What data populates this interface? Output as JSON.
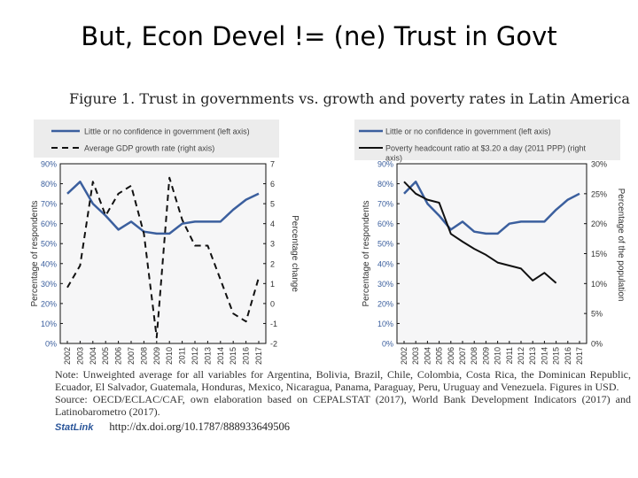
{
  "slide_title": "But, Econ Devel != (ne) Trust in Govt",
  "figure_label": "Figure 1.",
  "figure_title": "Trust in governments vs. growth and poverty rates in Latin America",
  "note": "Note: Unweighted average for all variables for Argentina, Bolivia, Brazil, Chile, Colombia, Costa Rica, the Dominican Republic, Ecuador, El Salvador, Guatemala, Honduras, Mexico, Nicaragua, Panama, Paraguay, Peru, Uruguay and Venezuela. Figures in USD.",
  "source": "Source: OECD/ECLAC/CAF, own elaboration based on CEPALSTAT (2017), World Bank Development Indicators (2017) and Latinobarometro (2017).",
  "statlink_label": "StatLink",
  "statlink_url": "http://dx.doi.org/10.1787/888933649506",
  "colors": {
    "trust": "#3b5f9e",
    "gdp": "#111111",
    "poverty": "#111111",
    "legend_bg": "#ececec"
  },
  "chart_data": [
    {
      "type": "line",
      "x": [
        "2002",
        "2003",
        "2004",
        "2005",
        "2006",
        "2007",
        "2008",
        "2009",
        "2010",
        "2011",
        "2012",
        "2013",
        "2014",
        "2015",
        "2016",
        "2017"
      ],
      "ylabel": "Percentage of respondents",
      "ylim": [
        0,
        90
      ],
      "yticks": [
        "0%",
        "10%",
        "20%",
        "30%",
        "40%",
        "50%",
        "60%",
        "70%",
        "80%",
        "90%"
      ],
      "y2label": "Percentage change",
      "y2lim": [
        -2,
        7
      ],
      "y2ticks": [
        "-2",
        "-1",
        "0",
        "1",
        "2",
        "3",
        "4",
        "5",
        "6",
        "7"
      ],
      "legend_placement": "top",
      "grid": false,
      "series": [
        {
          "name": "Little or no confidence in government (left axis)",
          "axis": "left",
          "style": "solid",
          "values": [
            75,
            81,
            70,
            64,
            57,
            61,
            56,
            55,
            55,
            60,
            61,
            61,
            61,
            67,
            72,
            75
          ]
        },
        {
          "name": "Average GDP growth rate (right axis)",
          "axis": "right",
          "style": "dashed",
          "values": [
            0.8,
            1.9,
            6.1,
            4.4,
            5.5,
            5.9,
            3.5,
            -1.7,
            6.3,
            4.2,
            2.9,
            2.9,
            1.2,
            -0.5,
            -0.9,
            1.3
          ]
        }
      ]
    },
    {
      "type": "line",
      "x": [
        "2002",
        "2003",
        "2004",
        "2005",
        "2006",
        "2007",
        "2008",
        "2009",
        "2010",
        "2011",
        "2012",
        "2013",
        "2014",
        "2015",
        "2016",
        "2017"
      ],
      "ylabel": "Percentage of respondents",
      "ylim": [
        0,
        90
      ],
      "yticks": [
        "0%",
        "10%",
        "20%",
        "30%",
        "40%",
        "50%",
        "60%",
        "70%",
        "80%",
        "90%"
      ],
      "y2label": "Percentage of the population",
      "y2lim": [
        0,
        30
      ],
      "y2ticks": [
        "0%",
        "5%",
        "10%",
        "15%",
        "20%",
        "25%",
        "30%"
      ],
      "legend_placement": "top",
      "grid": false,
      "series": [
        {
          "name": "Little or no confidence in government (left axis)",
          "axis": "left",
          "style": "solid",
          "values": [
            75,
            81,
            70,
            64,
            57,
            61,
            56,
            55,
            55,
            60,
            61,
            61,
            61,
            67,
            72,
            75
          ]
        },
        {
          "name": "Poverty headcount ratio at $3.20 a day (2011 PPP) (right axis)",
          "axis": "right",
          "style": "solid",
          "values": [
            27,
            25,
            24,
            23.5,
            18.3,
            17,
            15.8,
            14.8,
            13.5,
            13,
            12.5,
            10.5,
            11.8,
            10.1,
            null,
            null
          ]
        }
      ]
    }
  ]
}
